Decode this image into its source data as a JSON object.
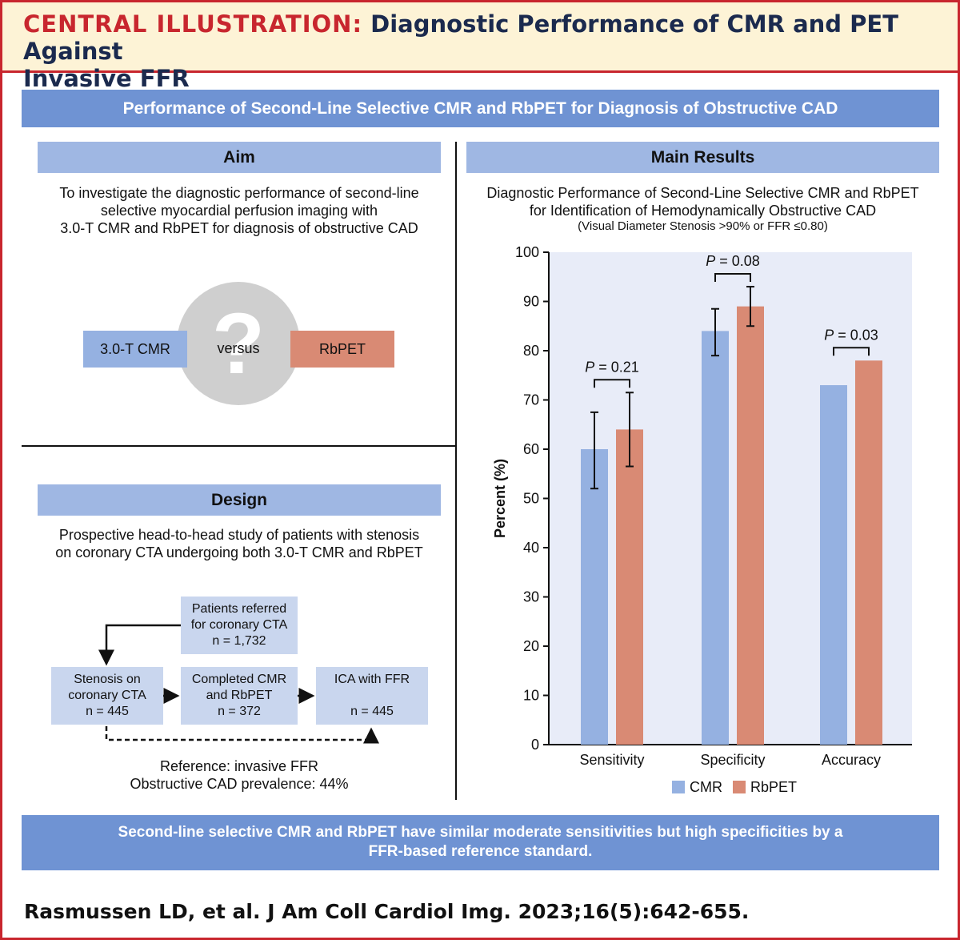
{
  "header": {
    "label": "CENTRAL ILLUSTRATION:",
    "title_part1": "Diagnostic Performance of CMR and PET Against",
    "title_part2": "Invasive FFR"
  },
  "top_banner": "Performance of Second-Line Selective CMR and RbPET for Diagnosis of Obstructive CAD",
  "aim": {
    "heading": "Aim",
    "lines": [
      "To investigate the diagnostic performance of second-line",
      "selective myocardial perfusion imaging with",
      "3.0-T CMR and RbPET for diagnosis of obstructive CAD"
    ],
    "left_box": "3.0-T CMR",
    "question": "?",
    "versus": "versus",
    "right_box": "RbPET"
  },
  "design": {
    "heading": "Design",
    "lines": [
      "Prospective head-to-head study of patients with stenosis",
      "on coronary CTA undergoing both 3.0-T CMR and RbPET"
    ],
    "flow": {
      "referred": [
        "Patients referred",
        "for coronary CTA",
        "n = 1,732"
      ],
      "stenosis": [
        "Stenosis on",
        "coronary CTA",
        "n = 445"
      ],
      "completed": [
        "Completed CMR",
        "and RbPET",
        "n = 372"
      ],
      "ica": [
        "ICA with FFR",
        "",
        "n = 445"
      ]
    },
    "footer_lines": [
      "Reference: invasive FFR",
      "Obstructive CAD prevalence: 44%"
    ]
  },
  "results": {
    "heading": "Main Results",
    "chart_title_lines": [
      "Diagnostic Performance of Second-Line Selective CMR and RbPET",
      "for Identification of Hemodynamically Obstructive CAD"
    ],
    "chart_subtitle": "(Visual Diameter Stenosis >90% or FFR ≤0.80)"
  },
  "colors": {
    "cmr": "#95b1e1",
    "rbpet": "#d98a74",
    "plot_bg": "#e8ecf8",
    "accent_red": "#c8262e",
    "banner_blue": "#6f93d3"
  },
  "chart_data": {
    "type": "bar",
    "title": "Diagnostic Performance of Second-Line Selective CMR and RbPET for Identification of Hemodynamically Obstructive CAD",
    "subtitle": "(Visual Diameter Stenosis >90% or FFR ≤0.80)",
    "categories": [
      "Sensitivity",
      "Specificity",
      "Accuracy"
    ],
    "series": [
      {
        "name": "CMR",
        "values": [
          60,
          84,
          73
        ],
        "ci_low": [
          52,
          79,
          null
        ],
        "ci_high": [
          67.5,
          88.5,
          null
        ]
      },
      {
        "name": "RbPET",
        "values": [
          64,
          89,
          78
        ],
        "ci_low": [
          56.5,
          85,
          null
        ],
        "ci_high": [
          71.5,
          93,
          null
        ]
      }
    ],
    "p_values": [
      {
        "prefix": "P",
        "text": " = 0.21"
      },
      {
        "prefix": "P",
        "text": " = 0.08"
      },
      {
        "prefix": "P",
        "text": " = 0.03"
      }
    ],
    "ylabel": "Percent (%)",
    "xlabel": "",
    "ylim": [
      0,
      100
    ],
    "yticks": [
      0,
      10,
      20,
      30,
      40,
      50,
      60,
      70,
      80,
      90,
      100
    ],
    "legend": "bottom-center"
  },
  "conclusion_lines": [
    "Second-line selective CMR and RbPET have similar moderate sensitivities but high specificities by a",
    "FFR-based reference standard."
  ],
  "citation": "Rasmussen LD, et al. J Am Coll Cardiol Img. 2023;16(5):642-655."
}
